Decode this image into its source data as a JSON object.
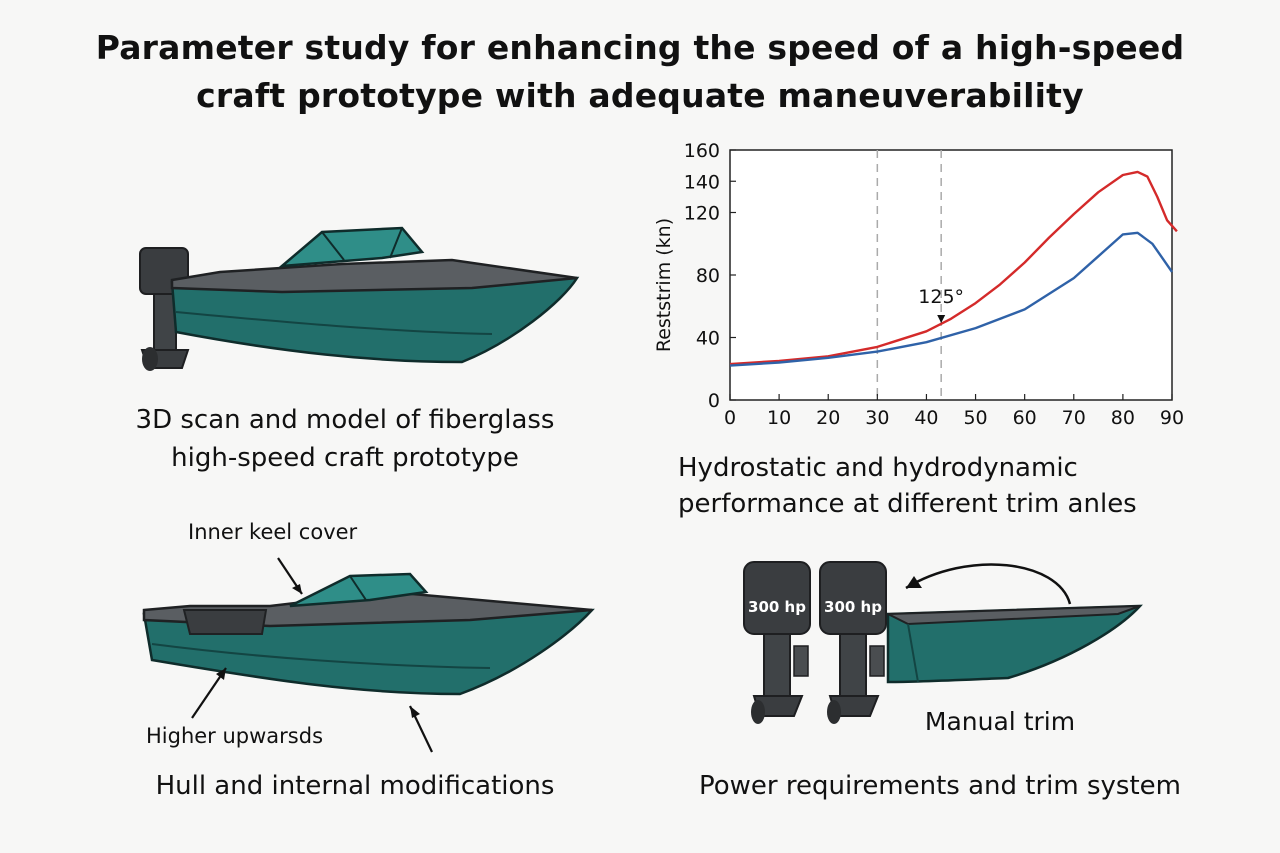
{
  "title": {
    "line1": "Parameter study for enhancing the speed of a high-speed",
    "line2": "craft prototype with adequate maneuverability"
  },
  "panel_scan": {
    "caption_line1": "3D scan and model of fiberglass",
    "caption_line2": "high-speed craft prototype"
  },
  "panel_chart": {
    "caption_line1": "Hydrostatic and hydrodynamic",
    "caption_line2": "performance at different trim anles"
  },
  "panel_hull": {
    "callout_top": "Inner keel cover",
    "callout_bottom": "Higher upwarsds",
    "caption": "Hull and internal modifications"
  },
  "panel_power": {
    "engine_left_label": "300 hp",
    "engine_right_label": "300 hp",
    "trim_label": "Manual trim",
    "caption": "Power requirements and trim system"
  },
  "colors": {
    "hull_teal": "#226f6b",
    "deck_gray": "#5a5e62",
    "red_series": "#d42a2a",
    "blue_series": "#2f62a8"
  },
  "chart_data": {
    "type": "line",
    "ylabel": "Reststrim (kn)",
    "xlim": [
      0,
      90
    ],
    "ylim": [
      0,
      160
    ],
    "x_ticks": [
      0,
      10,
      20,
      30,
      40,
      50,
      60,
      70,
      80,
      90
    ],
    "y_ticks": [
      0,
      40,
      80,
      120,
      140,
      160
    ],
    "grid": false,
    "vlines": [
      30,
      43
    ],
    "annotation": {
      "text": "125°",
      "x": 43,
      "y": 48
    },
    "series": [
      {
        "color": "#d42a2a",
        "x": [
          0,
          10,
          20,
          30,
          40,
          45,
          50,
          55,
          60,
          65,
          70,
          75,
          80,
          83,
          85,
          87,
          89,
          91
        ],
        "y": [
          23,
          25,
          28,
          34,
          44,
          52,
          62,
          74,
          88,
          104,
          119,
          133,
          144,
          146,
          143,
          130,
          115,
          108
        ]
      },
      {
        "color": "#2f62a8",
        "x": [
          0,
          10,
          20,
          30,
          40,
          50,
          60,
          70,
          75,
          80,
          83,
          86,
          88,
          90
        ],
        "y": [
          22,
          24,
          27,
          31,
          37,
          46,
          58,
          78,
          92,
          106,
          107,
          100,
          91,
          82
        ]
      }
    ]
  }
}
